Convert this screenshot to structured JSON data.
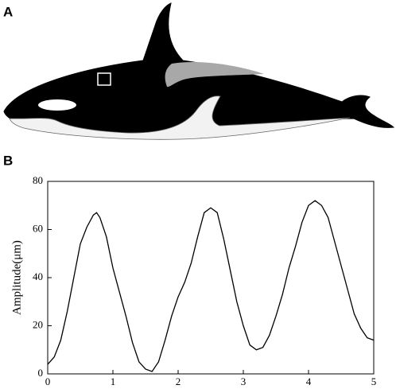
{
  "panels": {
    "a": "A",
    "b": "B"
  },
  "chart_data": {
    "type": "line",
    "ylabel": "Amplitude(μm)",
    "color": "#000000",
    "x": [
      0,
      0.1,
      0.2,
      0.3,
      0.4,
      0.5,
      0.6,
      0.7,
      0.75,
      0.8,
      0.9,
      1.0,
      1.1,
      1.2,
      1.3,
      1.4,
      1.5,
      1.6,
      1.7,
      1.8,
      1.9,
      2.0,
      2.1,
      2.2,
      2.3,
      2.4,
      2.5,
      2.6,
      2.7,
      2.8,
      2.9,
      3.0,
      3.1,
      3.2,
      3.3,
      3.4,
      3.5,
      3.6,
      3.7,
      3.8,
      3.9,
      4.0,
      4.1,
      4.2,
      4.3,
      4.4,
      4.5,
      4.6,
      4.7,
      4.8,
      4.9,
      5.0
    ],
    "values": [
      4,
      7,
      14,
      26,
      40,
      54,
      61,
      66,
      67,
      65,
      57,
      44,
      34,
      24,
      13,
      5,
      2,
      1,
      5,
      14,
      24,
      32,
      38,
      46,
      57,
      67,
      69,
      67,
      56,
      43,
      30,
      20,
      12,
      10,
      11,
      16,
      24,
      33,
      44,
      53,
      63,
      70,
      72,
      70,
      65,
      55,
      45,
      35,
      25,
      19,
      15,
      14
    ],
    "xlim": [
      0,
      5
    ],
    "ylim": [
      0,
      80
    ],
    "xticks": [
      0,
      1,
      2,
      3,
      4,
      5
    ],
    "yticks": [
      0,
      20,
      40,
      60,
      80
    ]
  }
}
